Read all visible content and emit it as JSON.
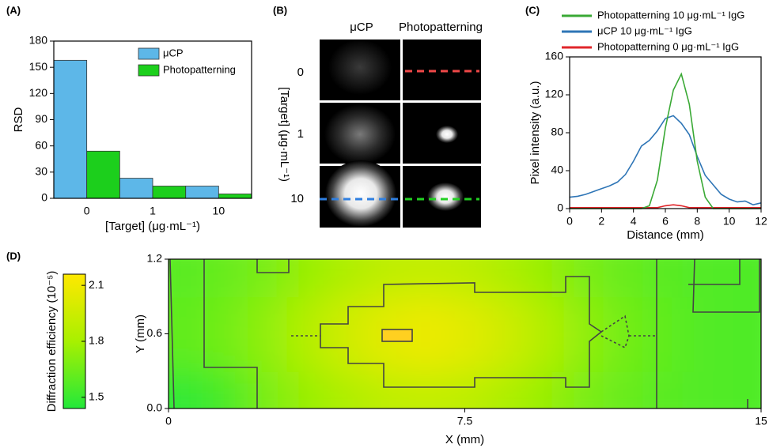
{
  "chart_data": [
    {
      "type": "bar",
      "panel": "(A)",
      "ylabel": "RSD",
      "xlabel": "[Target] (μg·mL⁻¹)",
      "categories": [
        "0",
        "1",
        "10"
      ],
      "series": [
        {
          "name": "μCP",
          "color": "#5db7e8",
          "values": [
            158,
            23,
            14
          ]
        },
        {
          "name": "Photopatterning",
          "color": "#1ccf1c",
          "values": [
            54,
            14,
            5
          ]
        }
      ],
      "ylim": [
        0,
        180
      ],
      "yticks": [
        0,
        30,
        60,
        90,
        120,
        150,
        180
      ]
    },
    {
      "type": "image",
      "panel": "(B)",
      "ylabel": "[Target] (μg·mL⁻¹)",
      "columns": [
        "μCP",
        "Photopatterning"
      ],
      "rows": [
        "0",
        "1",
        "10"
      ]
    },
    {
      "type": "line",
      "panel": "(C)",
      "xlabel": "Distance (mm)",
      "ylabel": "Pixel intensity (a.u.)",
      "x": [
        0,
        0.5,
        1,
        1.5,
        2,
        2.5,
        3,
        3.5,
        4,
        4.5,
        5,
        5.5,
        6,
        6.5,
        7,
        7.5,
        8,
        8.5,
        9,
        9.5,
        10,
        10.5,
        11,
        11.5,
        12
      ],
      "series": [
        {
          "name": "Photopatterning 10 μg·mL⁻¹ IgG",
          "color": "#3aa935",
          "values": [
            0,
            0,
            0,
            0,
            0,
            0,
            0,
            0,
            0,
            0,
            3,
            30,
            85,
            125,
            142,
            110,
            50,
            12,
            0,
            0,
            0,
            0,
            0,
            0,
            0
          ]
        },
        {
          "name": "μCP 10 μg·mL⁻¹ IgG",
          "color": "#2e75b6",
          "values": [
            12,
            13,
            15,
            18,
            21,
            24,
            28,
            36,
            50,
            66,
            72,
            82,
            95,
            98,
            90,
            78,
            55,
            35,
            25,
            15,
            10,
            7,
            8,
            4,
            6
          ]
        },
        {
          "name": "Photopatterning 0 μg·mL⁻¹ IgG",
          "color": "#e0262b",
          "values": [
            1,
            1,
            1,
            1,
            1,
            1,
            1,
            1,
            1,
            1,
            1,
            1,
            3,
            4,
            3,
            1,
            1,
            1,
            1,
            1,
            1,
            1,
            1,
            1,
            1
          ]
        }
      ],
      "xlim": [
        0,
        12
      ],
      "xticks": [
        0,
        2,
        4,
        6,
        8,
        10,
        12
      ],
      "ylim": [
        0,
        160
      ],
      "yticks": [
        0,
        40,
        80,
        120,
        160
      ]
    },
    {
      "type": "heatmap",
      "panel": "(D)",
      "xlabel": "X (mm)",
      "ylabel": "Y (mm)",
      "colorbar_label": "Diffraction efficiency (10⁻⁵)",
      "xlim": [
        0,
        15
      ],
      "xticks": [
        0,
        7.5,
        15
      ],
      "ylim": [
        0,
        1.2
      ],
      "yticks": [
        {
          "value": 0,
          "label": "0.0"
        },
        0.6,
        1.2
      ],
      "zlim": [
        1.44,
        2.16
      ],
      "zticks": [
        1.5,
        1.8,
        2.1
      ],
      "colorscale": [
        "#22e83a",
        "#a8f000",
        "#ffe800"
      ],
      "z": [
        [
          1.48,
          1.55,
          1.68,
          1.76,
          1.83,
          1.89,
          1.91,
          1.89,
          1.83,
          1.76,
          1.68,
          1.63,
          1.59,
          1.57,
          1.56
        ],
        [
          1.61,
          1.66,
          1.74,
          1.85,
          1.96,
          2.04,
          2.08,
          2.04,
          1.96,
          1.85,
          1.74,
          1.66,
          1.61,
          1.57,
          1.56
        ],
        [
          1.61,
          1.66,
          1.74,
          1.85,
          1.96,
          2.04,
          2.08,
          2.04,
          1.96,
          1.85,
          1.74,
          1.66,
          1.61,
          1.57,
          1.56
        ],
        [
          1.59,
          1.63,
          1.68,
          1.76,
          1.83,
          1.89,
          1.91,
          1.89,
          1.83,
          1.76,
          1.68,
          1.63,
          1.59,
          1.57,
          1.56
        ]
      ]
    }
  ]
}
